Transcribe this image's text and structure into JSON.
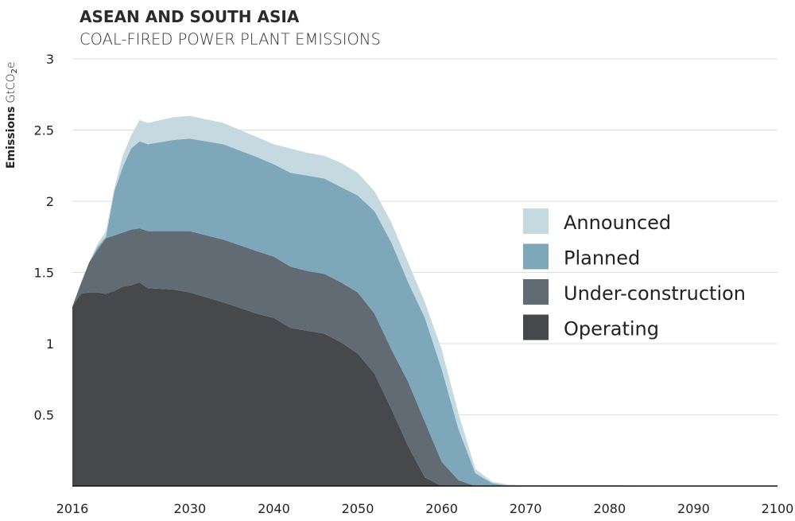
{
  "chart_data": {
    "type": "area",
    "stacked": true,
    "title": "ASEAN AND SOUTH ASIA",
    "subtitle": "COAL-FIRED POWER PLANT EMISSIONS",
    "ylabel_bold": "Emissions",
    "ylabel_unit": "GtCO",
    "ylabel_sub": "2",
    "ylabel_suffix": "e",
    "xlim": [
      2016,
      2100
    ],
    "ylim": [
      0,
      3
    ],
    "grid": true,
    "legend_position": "right",
    "x_ticks": [
      "2016",
      "2030",
      "2040",
      "2050",
      "2060",
      "2070",
      "2080",
      "2090",
      "2100"
    ],
    "y_ticks": [
      "0.5",
      "1",
      "1.5",
      "2",
      "2.5",
      "3"
    ],
    "x": [
      2016,
      2017,
      2018,
      2019,
      2020,
      2021,
      2022,
      2023,
      2024,
      2025,
      2028,
      2030,
      2034,
      2038,
      2040,
      2042,
      2044,
      2046,
      2048,
      2050,
      2052,
      2054,
      2056,
      2058,
      2060,
      2062,
      2064,
      2066,
      2068,
      2070,
      2080,
      2090,
      2100
    ],
    "series": [
      {
        "name": "Operating",
        "color": "#47484c",
        "values": [
          1.26,
          1.35,
          1.36,
          1.36,
          1.35,
          1.37,
          1.4,
          1.41,
          1.43,
          1.39,
          1.38,
          1.36,
          1.29,
          1.21,
          1.18,
          1.11,
          1.09,
          1.07,
          1.01,
          0.93,
          0.79,
          0.54,
          0.28,
          0.06,
          0,
          0,
          0,
          0,
          0,
          0,
          0,
          0,
          0
        ]
      },
      {
        "name": "Under-construction",
        "color": "#616b74",
        "values": [
          0,
          0.07,
          0.21,
          0.3,
          0.39,
          0.39,
          0.38,
          0.39,
          0.38,
          0.4,
          0.41,
          0.43,
          0.44,
          0.44,
          0.43,
          0.43,
          0.42,
          0.42,
          0.42,
          0.43,
          0.42,
          0.42,
          0.45,
          0.39,
          0.17,
          0.04,
          0,
          0,
          0,
          0,
          0,
          0,
          0
        ]
      },
      {
        "name": "Planned",
        "color": "#7ea8ba",
        "values": [
          0,
          0,
          0,
          0.02,
          0.01,
          0.31,
          0.46,
          0.57,
          0.61,
          0.61,
          0.64,
          0.65,
          0.67,
          0.66,
          0.65,
          0.66,
          0.67,
          0.67,
          0.67,
          0.68,
          0.72,
          0.75,
          0.7,
          0.73,
          0.65,
          0.36,
          0.09,
          0.02,
          0,
          0,
          0,
          0,
          0
        ]
      },
      {
        "name": "Announced",
        "color": "#c5d9e0",
        "values": [
          0,
          0,
          0,
          0.02,
          0.04,
          0.02,
          0.08,
          0.09,
          0.15,
          0.15,
          0.16,
          0.16,
          0.15,
          0.14,
          0.14,
          0.17,
          0.16,
          0.16,
          0.17,
          0.16,
          0.14,
          0.14,
          0.14,
          0.11,
          0.14,
          0.11,
          0.03,
          0.01,
          0.01,
          0.005,
          0.004,
          0.003,
          0.003
        ]
      }
    ],
    "legend_order": [
      "Announced",
      "Planned",
      "Under-construction",
      "Operating"
    ]
  }
}
